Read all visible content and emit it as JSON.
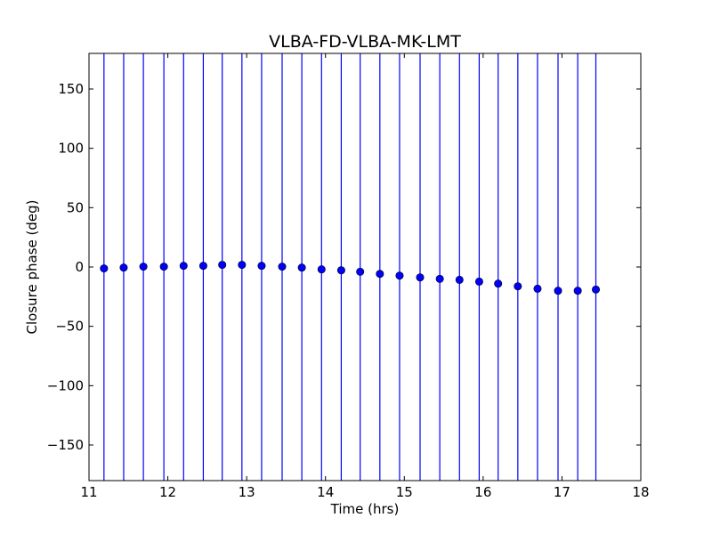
{
  "chart_data": {
    "type": "scatter",
    "title": "VLBA-FD-VLBA-MK-LMT",
    "xlabel": "Time (hrs)",
    "ylabel": "Closure phase (deg)",
    "xlim": [
      11,
      18
    ],
    "ylim": [
      -180,
      180
    ],
    "xticks": [
      11,
      12,
      13,
      14,
      15,
      16,
      17,
      18
    ],
    "yticks": [
      -150,
      -100,
      -50,
      0,
      50,
      100,
      150
    ],
    "ytick_labels": [
      "−150",
      "−100",
      "−50",
      "0",
      "50",
      "100",
      "150"
    ],
    "grid": false,
    "marker_color": "#0000ff",
    "x": [
      11.19,
      11.44,
      11.69,
      11.95,
      12.2,
      12.45,
      12.69,
      12.94,
      13.19,
      13.45,
      13.7,
      13.95,
      14.2,
      14.44,
      14.69,
      14.94,
      15.2,
      15.45,
      15.7,
      15.95,
      16.19,
      16.44,
      16.69,
      16.95,
      17.2,
      17.43
    ],
    "y": [
      -1.2,
      -0.5,
      0.3,
      0.3,
      1,
      1,
      1.8,
      1.8,
      1,
      0.3,
      -0.5,
      -2,
      -2.8,
      -4,
      -5.8,
      -7.3,
      -8.8,
      -10,
      -10.8,
      -12.3,
      -14,
      -16.3,
      -18.3,
      -20,
      -20,
      -19
    ],
    "error_bars": "span full y range"
  }
}
